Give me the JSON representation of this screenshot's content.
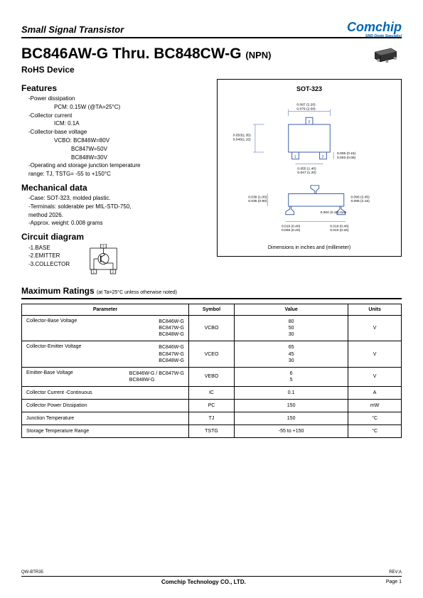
{
  "header": {
    "category": "Small Signal Transistor",
    "logo": "Comchip",
    "logo_sub": "SMD Diode Specialist",
    "logo_color": "#0066b3"
  },
  "title": {
    "main": "BC846AW-G Thru. BC848CW-G",
    "type": "(NPN)",
    "subtitle": "RoHS Device"
  },
  "features": {
    "heading": "Features",
    "items": [
      {
        "text": "-Power dissipation"
      },
      {
        "text": "PCM: 0.15W (@TA=25°C)",
        "indent": "sub"
      },
      {
        "text": "-Collector current"
      },
      {
        "text": "ICM: 0.1A",
        "indent": "sub"
      },
      {
        "text": "-Collector-base voltage"
      },
      {
        "text": "VCBO: BC846W=80V",
        "indent": "sub"
      },
      {
        "text": "BC847W=50V",
        "indent": "sub2"
      },
      {
        "text": "BC848W=30V",
        "indent": "sub2"
      },
      {
        "text": "-Operating and storage junction temperature"
      },
      {
        "text": " range: TJ, TSTG= -55 to +150°C"
      }
    ]
  },
  "mechanical": {
    "heading": "Mechanical data",
    "items": [
      "-Case: SOT-323, molded plastic.",
      "-Terminals: solderable per MIL-STD-750,",
      " method 2026.",
      "-Approx. weight: 0.008 grams"
    ]
  },
  "circuit": {
    "heading": "Circuit diagram",
    "labels": [
      "-1.BASE",
      "-2.EMITTER",
      "-3.COLLECTOR"
    ]
  },
  "package": {
    "title": "SOT-323",
    "footer": "Dimensions in inches and (millimeter)",
    "dims": {
      "top_w1": "0.087 (2.20)",
      "top_w2": "0.079 (2.00)",
      "left_h1": "0.053(1.35)",
      "left_h2": "0.045(1.15)",
      "bot_pin1": "0.055 (1.40)",
      "bot_pin2": "0.047 (1.20)",
      "right_t1": "0.006 (0.15)",
      "right_t2": "0.003 (0.08)",
      "body_h1": "0.039 (1.00)",
      "body_h2": "0.035 (0.90)",
      "side_w1": "0.096 (2.45)",
      "side_w2": "0.085 (2.15)",
      "foot_t": "0.004 (0.10) max",
      "lead_w1": "0.016 (0.40)",
      "lead_w2": "0.008 (0.20)",
      "lead_l1": "0.018 (0.46)",
      "lead_l2": "0.010 (0.26)"
    }
  },
  "ratings": {
    "heading": "Maximum Ratings",
    "note": "(at Ta=25°C unless otherwise noted)",
    "columns": [
      "Parameter",
      "Symbol",
      "Value",
      "Units"
    ],
    "rows": [
      {
        "param": "Collector-Base Voltage",
        "parts": [
          "BC846W-G",
          "BC847W-G",
          "BC848W-G"
        ],
        "symbol": "VCBO",
        "values": [
          "80",
          "50",
          "30"
        ],
        "unit": "V"
      },
      {
        "param": "Collector-Emitter Voltage",
        "parts": [
          "BC846W-G",
          "BC847W-G",
          "BC848W-G"
        ],
        "symbol": "VCEO",
        "values": [
          "65",
          "45",
          "30"
        ],
        "unit": "V"
      },
      {
        "param": "Emitter-Base Voltage",
        "parts": [
          "BC846W-G / BC847W-G",
          "BC848W-G"
        ],
        "symbol": "VEBO",
        "values": [
          "6",
          "5"
        ],
        "unit": "V"
      },
      {
        "param": "Collector Current -Continuous",
        "parts": [],
        "symbol": "IC",
        "values": [
          "0.1"
        ],
        "unit": "A"
      },
      {
        "param": "Collector Power Dissipation",
        "parts": [],
        "symbol": "PC",
        "values": [
          "150"
        ],
        "unit": "mW"
      },
      {
        "param": "Junction Temperature",
        "parts": [],
        "symbol": "TJ",
        "values": [
          "150"
        ],
        "unit": "°C"
      },
      {
        "param": "Storage Temperature Range",
        "parts": [],
        "symbol": "TSTG",
        "values": [
          "-55 to +150"
        ],
        "unit": "°C"
      }
    ]
  },
  "footer": {
    "ref": "QW-BTR35",
    "company": "Comchip Technology CO., LTD.",
    "page": "Page 1",
    "rev": "REV:A"
  }
}
